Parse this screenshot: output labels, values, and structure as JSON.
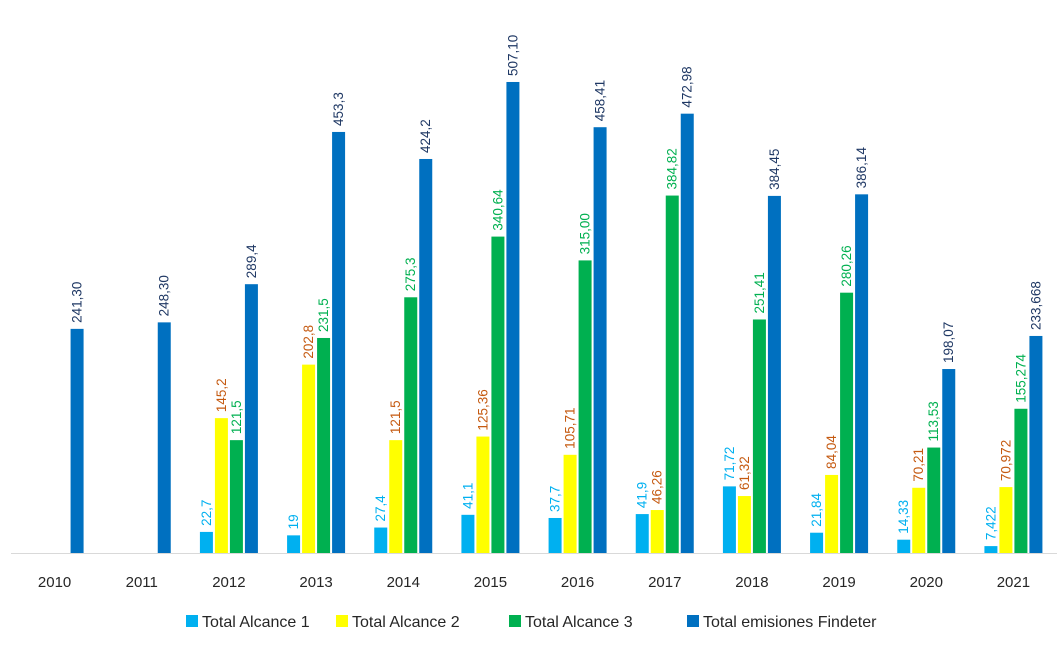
{
  "chart_data": {
    "type": "bar",
    "title": "",
    "xlabel": "",
    "ylabel": "",
    "ylim": [
      0,
      520
    ],
    "grid": false,
    "legend_position": "bottom",
    "categories": [
      "2010",
      "2011",
      "2012",
      "2013",
      "2014",
      "2015",
      "2016",
      "2017",
      "2018",
      "2019",
      "2020",
      "2021"
    ],
    "series": [
      {
        "name": "Total Alcance 1",
        "color": "#00b0f0",
        "label_color": "#00b0f0",
        "values": [
          null,
          null,
          22.7,
          19,
          27.4,
          41.1,
          37.7,
          41.9,
          71.72,
          21.84,
          14.33,
          7.422
        ],
        "labels": [
          null,
          null,
          "22,7",
          "19",
          "27,4",
          "41,1",
          "37,7",
          "41,9",
          "71,72",
          "21,84",
          "14,33",
          "7,422"
        ]
      },
      {
        "name": "Total Alcance 2",
        "color": "#ffff00",
        "label_color": "#c55a11",
        "values": [
          null,
          null,
          145.2,
          202.8,
          121.5,
          125.36,
          105.71,
          46.26,
          61.32,
          84.04,
          70.21,
          70.972
        ],
        "labels": [
          null,
          null,
          "145,2",
          "202,8",
          "121,5",
          "125,36",
          "105,71",
          "46,26",
          "61,32",
          "84,04",
          "70,21",
          "70,972"
        ]
      },
      {
        "name": "Total Alcance 3",
        "color": "#00b050",
        "label_color": "#00b050",
        "values": [
          null,
          null,
          121.5,
          231.5,
          275.3,
          340.64,
          315.0,
          384.82,
          251.41,
          280.26,
          113.53,
          155.274
        ],
        "labels": [
          null,
          null,
          "121,5",
          "231,5",
          "275,3",
          "340,64",
          "315,00",
          "384,82",
          "251,41",
          "280,26",
          "113,53",
          "155,274"
        ]
      },
      {
        "name": "Total emisiones Findeter",
        "color": "#0070c0",
        "label_color": "#1f3864",
        "values": [
          241.3,
          248.3,
          289.4,
          453.3,
          424.2,
          507.1,
          458.41,
          472.98,
          384.45,
          386.14,
          198.07,
          233.668
        ],
        "labels": [
          "241,30",
          "248,30",
          "289,4",
          "453,3",
          "424,2",
          "507,10",
          "458,41",
          "472,98",
          "384,45",
          "386,14",
          "198,07",
          "233,668"
        ]
      }
    ]
  }
}
